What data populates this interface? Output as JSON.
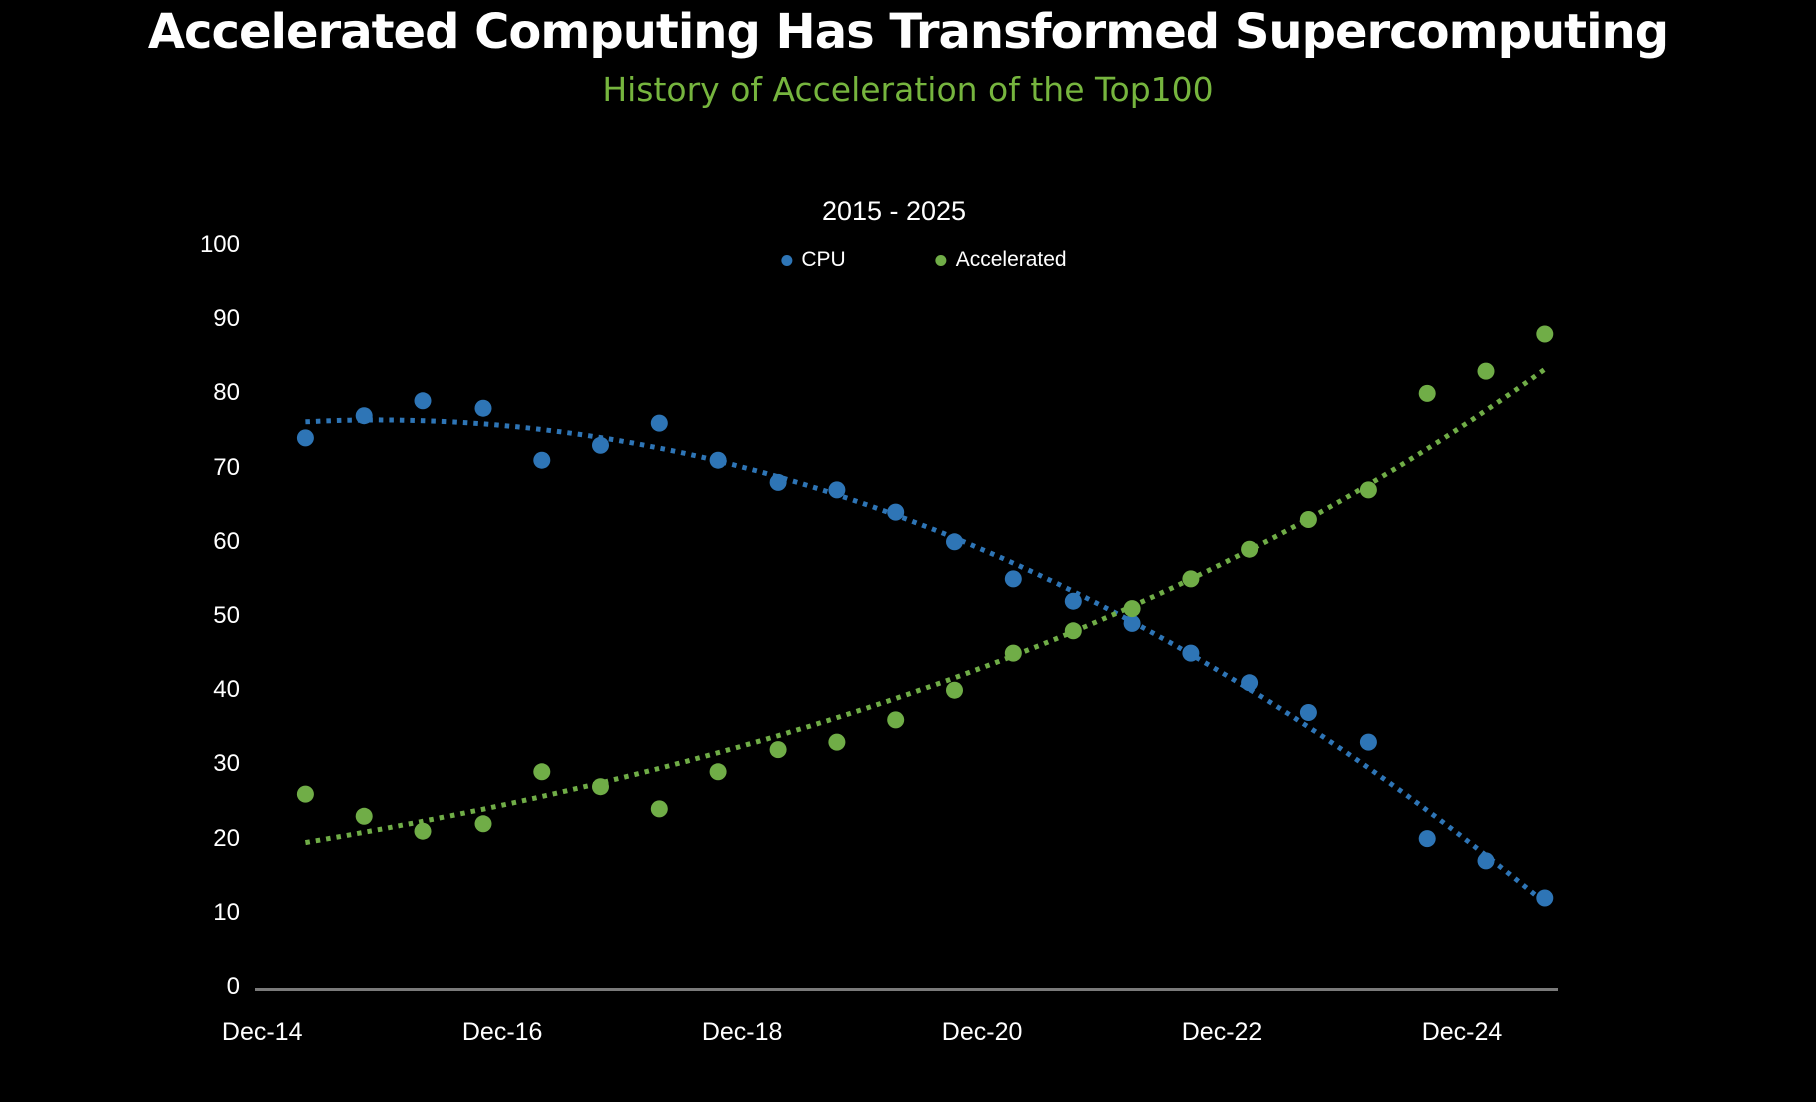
{
  "title": "Accelerated Computing Has Transformed Supercomputing",
  "subtitle": "History of Acceleration of the Top100",
  "colors": {
    "background": "#000000",
    "title_text": "#ffffff",
    "subtitle_text": "#76b53e",
    "axis_text": "#ffffff",
    "axis_line": "#7a7a7a",
    "cpu": "#2e75b6",
    "accelerated": "#70ad47"
  },
  "chart_data": {
    "type": "scatter",
    "title": "2015 - 2025",
    "xlabel": "",
    "ylabel": "",
    "grid": false,
    "legend_position": "top-center",
    "xlim": [
      2014.86,
      2025.72
    ],
    "ylim": [
      0,
      100
    ],
    "y_ticks": [
      0,
      10,
      20,
      30,
      40,
      50,
      60,
      70,
      80,
      90,
      100
    ],
    "x_ticks": {
      "values": [
        2014.92,
        2016.92,
        2018.92,
        2020.92,
        2022.92,
        2024.92
      ],
      "labels": [
        "Dec-14",
        "Dec-16",
        "Dec-18",
        "Dec-20",
        "Dec-22",
        "Dec-24"
      ]
    },
    "x": [
      2015.28,
      2015.77,
      2016.26,
      2016.76,
      2017.25,
      2017.74,
      2018.23,
      2018.72,
      2019.22,
      2019.71,
      2020.2,
      2020.69,
      2021.18,
      2021.68,
      2022.17,
      2022.66,
      2023.15,
      2023.64,
      2024.14,
      2024.63,
      2025.12,
      2025.61
    ],
    "series": [
      {
        "name": "CPU",
        "color": "#2e75b6",
        "trend": "quadratic",
        "values": [
          74,
          77,
          79,
          78,
          71,
          73,
          76,
          71,
          68,
          67,
          64,
          60,
          55,
          52,
          49,
          45,
          41,
          37,
          33,
          20,
          17,
          12
        ]
      },
      {
        "name": "Accelerated",
        "color": "#70ad47",
        "trend": "exponential",
        "values": [
          26,
          23,
          21,
          22,
          29,
          27,
          24,
          29,
          32,
          33,
          36,
          40,
          45,
          48,
          51,
          55,
          59,
          63,
          67,
          80,
          83,
          88
        ]
      }
    ],
    "legend": [
      {
        "name": "CPU",
        "color": "#2e75b6"
      },
      {
        "name": "Accelerated",
        "color": "#70ad47"
      }
    ]
  }
}
